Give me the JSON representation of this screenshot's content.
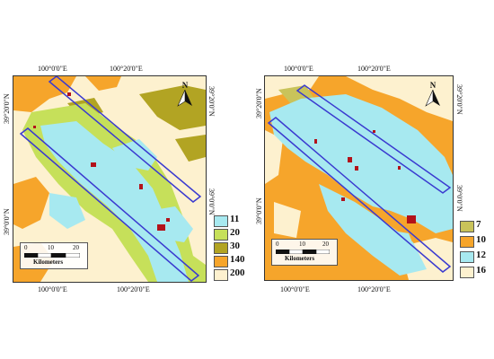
{
  "left_map": {
    "coords": {
      "top_lon_1": "100°0'0\"E",
      "top_lon_2": "100°20'0\"E",
      "bottom_lon_1": "100°0'0\"E",
      "bottom_lon_2": "100°20'0\"E",
      "left_lat_1": "39°20'0\"N",
      "left_lat_2": "39°0'0\"N",
      "right_lat_1": "39°20'0\"N",
      "right_lat_2": "39°0'0\"N"
    },
    "north_label": "N",
    "scale": {
      "ticks": [
        "0",
        "10",
        "20"
      ],
      "unit": "Kilometers"
    },
    "legend": [
      {
        "label": "11",
        "color": "#a7e9f0"
      },
      {
        "label": "20",
        "color": "#c6e05a"
      },
      {
        "label": "30",
        "color": "#b2a423"
      },
      {
        "label": "140",
        "color": "#f6a52b"
      },
      {
        "label": "200",
        "color": "#fdf1cf"
      }
    ]
  },
  "right_map": {
    "coords": {
      "top_lon_1": "100°0'0\"E",
      "top_lon_2": "100°20'0\"E",
      "bottom_lon_1": "100°0'0\"E",
      "bottom_lon_2": "100°20'0\"E",
      "left_lat_1": "39°20'0\"N",
      "left_lat_2": "39°0'0\"N",
      "right_lat_1": "39°20'0\"N",
      "right_lat_2": "39°0'0\"N"
    },
    "north_label": "N",
    "scale": {
      "ticks": [
        "0",
        "10",
        "20"
      ],
      "unit": "Kilometers"
    },
    "legend": [
      {
        "label": "7",
        "color": "#c9c35a"
      },
      {
        "label": "10",
        "color": "#f6a52b"
      },
      {
        "label": "12",
        "color": "#a7e9f0"
      },
      {
        "label": "16",
        "color": "#fdf1cf"
      }
    ]
  },
  "colors": {
    "transect_outline": "#3a3ad0",
    "urban_red": "#b3121a"
  }
}
